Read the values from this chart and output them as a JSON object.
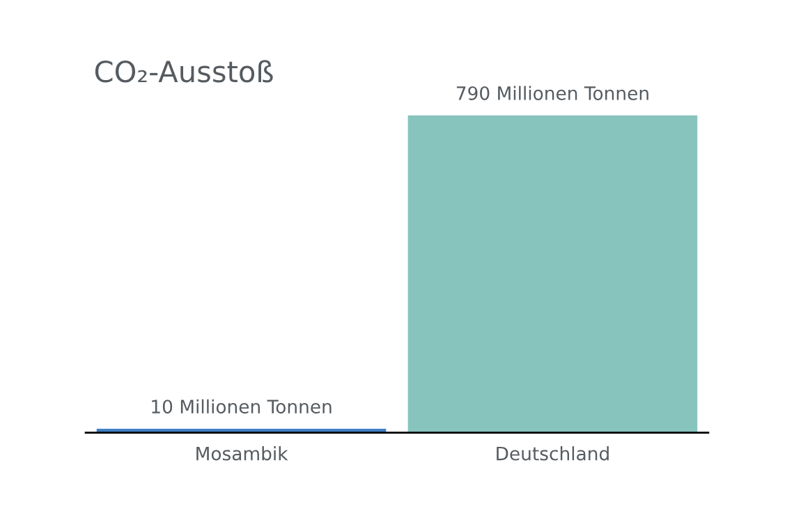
{
  "chart_data": {
    "type": "bar",
    "title": "CO₂-Ausstoß",
    "categories": [
      "Mosambik",
      "Deutschland"
    ],
    "values": [
      10,
      790
    ],
    "colors": [
      "#3f7fc4",
      "#88c4be"
    ],
    "value_labels": [
      "10 Millionen Tonnen",
      "790 Millionen Tonnen"
    ],
    "grid": false,
    "legend": false,
    "tick_labels": "x"
  }
}
